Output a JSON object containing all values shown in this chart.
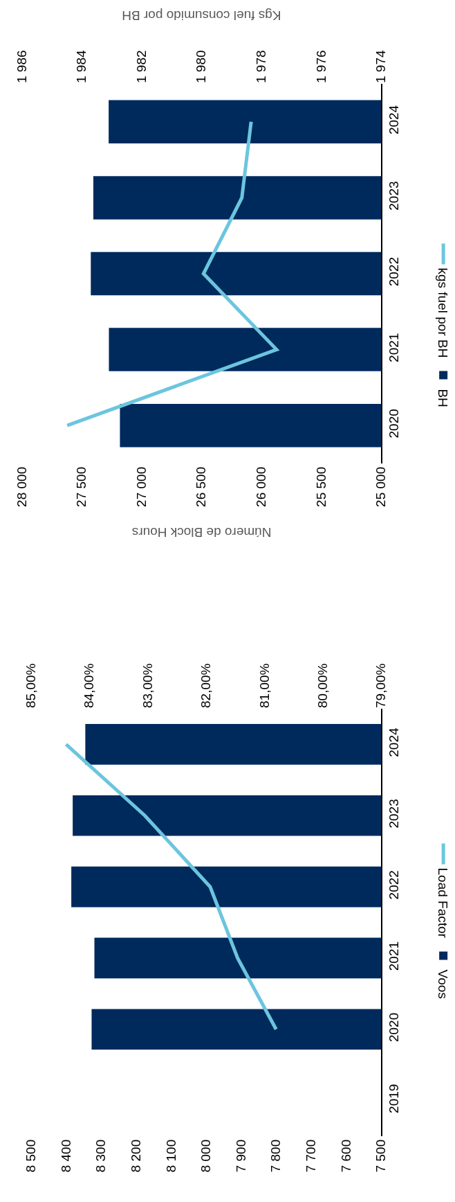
{
  "chart_data": [
    {
      "type": "bar",
      "orientation": "horizontal",
      "categories": [
        "2024",
        "2023",
        "2022",
        "2021",
        "2020",
        "2019"
      ],
      "series": [
        {
          "name": "Voos",
          "type": "bar",
          "color": "#002a5c",
          "values": [
            8345,
            8381,
            8385,
            8319,
            8327,
            null
          ]
        },
        {
          "name": "Load Factor",
          "type": "line",
          "axis": "x2",
          "color": "#6cc5de",
          "values": [
            84.4,
            83.05,
            81.93,
            81.46,
            80.8,
            null
          ]
        }
      ],
      "xlim": [
        8500,
        7500
      ],
      "xticks": [
        {
          "value": 8500,
          "label": "8 500"
        },
        {
          "value": 8400,
          "label": "8 400"
        },
        {
          "value": 8300,
          "label": "8 300"
        },
        {
          "value": 8200,
          "label": "8 200"
        },
        {
          "value": 8100,
          "label": "8 100"
        },
        {
          "value": 8000,
          "label": "8 000"
        },
        {
          "value": 7900,
          "label": "7 900"
        },
        {
          "value": 7800,
          "label": "7 800"
        },
        {
          "value": 7700,
          "label": "7 700"
        },
        {
          "value": 7600,
          "label": "7 600"
        },
        {
          "value": 7500,
          "label": "7 500"
        }
      ],
      "x2lim": [
        85,
        79
      ],
      "x2ticks": [
        {
          "value": 85,
          "label": "85,00%"
        },
        {
          "value": 84,
          "label": "84,00%"
        },
        {
          "value": 83,
          "label": "83,00%"
        },
        {
          "value": 82,
          "label": "82,00%"
        },
        {
          "value": 81,
          "label": "81,00%"
        },
        {
          "value": 80,
          "label": "80,00%"
        },
        {
          "value": 79,
          "label": "79,00%"
        }
      ],
      "legend": "right",
      "grid": false,
      "marker": "none",
      "line_style": "solid"
    },
    {
      "type": "bar",
      "orientation": "horizontal",
      "categories": [
        "2024",
        "2023",
        "2022",
        "2021",
        "2020"
      ],
      "xlabel": "Número de Block Hours",
      "x2label": "Kgs fuel consumido por BH",
      "series": [
        {
          "name": "BH",
          "type": "bar",
          "color": "#002a5c",
          "values": [
            27274,
            27402,
            27423,
            27272,
            27180
          ]
        },
        {
          "name": "kgs fuel por BH",
          "type": "line",
          "axis": "x2",
          "color": "#6cc5de",
          "values": [
            1978.34,
            1978.65,
            1979.93,
            1977.49,
            1984.48
          ]
        }
      ],
      "xlim": [
        28000,
        25000
      ],
      "xticks": [
        {
          "value": 28000,
          "label": "28 000"
        },
        {
          "value": 27500,
          "label": "27 500"
        },
        {
          "value": 27000,
          "label": "27 000"
        },
        {
          "value": 26500,
          "label": "26 500"
        },
        {
          "value": 26000,
          "label": "26 000"
        },
        {
          "value": 25500,
          "label": "25 500"
        },
        {
          "value": 25000,
          "label": "25 000"
        }
      ],
      "x2lim": [
        1986,
        1974
      ],
      "x2ticks": [
        {
          "value": 1986,
          "label": "1 986"
        },
        {
          "value": 1984,
          "label": "1 984"
        },
        {
          "value": 1982,
          "label": "1 982"
        },
        {
          "value": 1980,
          "label": "1 980"
        },
        {
          "value": 1978,
          "label": "1 978"
        },
        {
          "value": 1976,
          "label": "1 976"
        },
        {
          "value": 1974,
          "label": "1 974"
        }
      ],
      "legend": "right",
      "grid": false,
      "marker": "none",
      "line_style": "solid"
    }
  ]
}
